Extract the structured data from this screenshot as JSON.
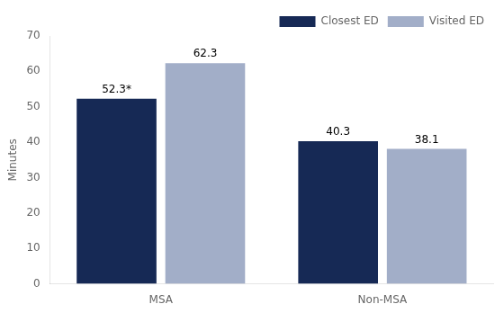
{
  "chart_data": {
    "type": "bar",
    "categories": [
      "MSA",
      "Non-MSA"
    ],
    "series": [
      {
        "name": "Closest ED",
        "color": "#162955",
        "values": [
          52.3,
          40.3
        ],
        "value_labels": [
          "52.3*",
          "40.3"
        ]
      },
      {
        "name": "Visited ED",
        "color": "#a2aec8",
        "values": [
          62.3,
          38.1
        ],
        "value_labels": [
          "62.3",
          "38.1"
        ]
      }
    ],
    "ylabel": "Minutes",
    "ylim": [
      0,
      70
    ],
    "yticks": [
      0,
      10,
      20,
      30,
      40,
      50,
      60,
      70
    ],
    "grid": false,
    "legend": "upper right",
    "data_labels": true
  }
}
